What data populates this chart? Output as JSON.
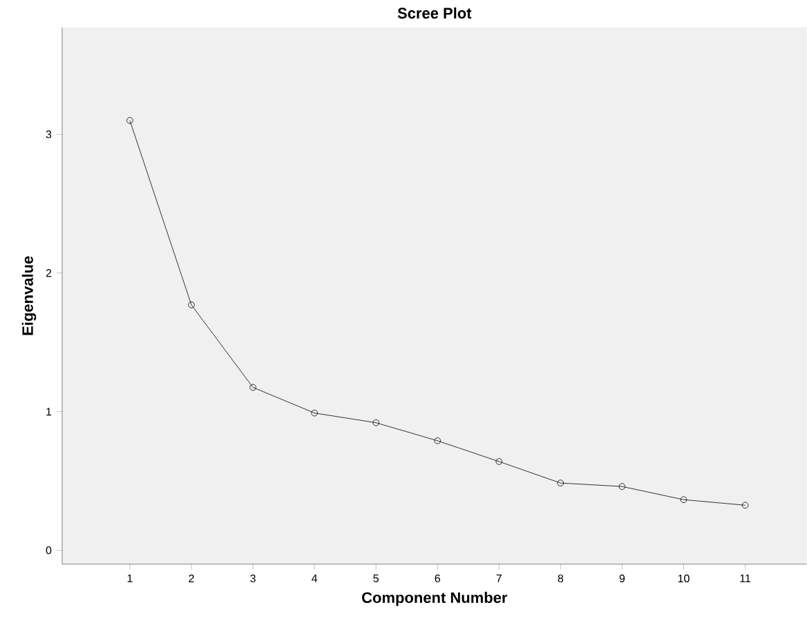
{
  "chart_data": {
    "type": "line",
    "title": "Scree Plot",
    "xlabel": "Component Number",
    "ylabel": "Eigenvalue",
    "x": [
      1,
      2,
      3,
      4,
      5,
      6,
      7,
      8,
      9,
      10,
      11
    ],
    "values": [
      3.1,
      1.77,
      1.175,
      0.99,
      0.92,
      0.79,
      0.64,
      0.485,
      0.46,
      0.365,
      0.325
    ],
    "color": "#000000",
    "marker": "circle",
    "xlim": [
      -0.1,
      12
    ],
    "ylim": [
      -0.1,
      3.77
    ],
    "xticks": [
      1,
      2,
      3,
      4,
      5,
      6,
      7,
      8,
      9,
      10,
      11
    ],
    "yticks": [
      0,
      1,
      2,
      3
    ],
    "grid": false
  }
}
